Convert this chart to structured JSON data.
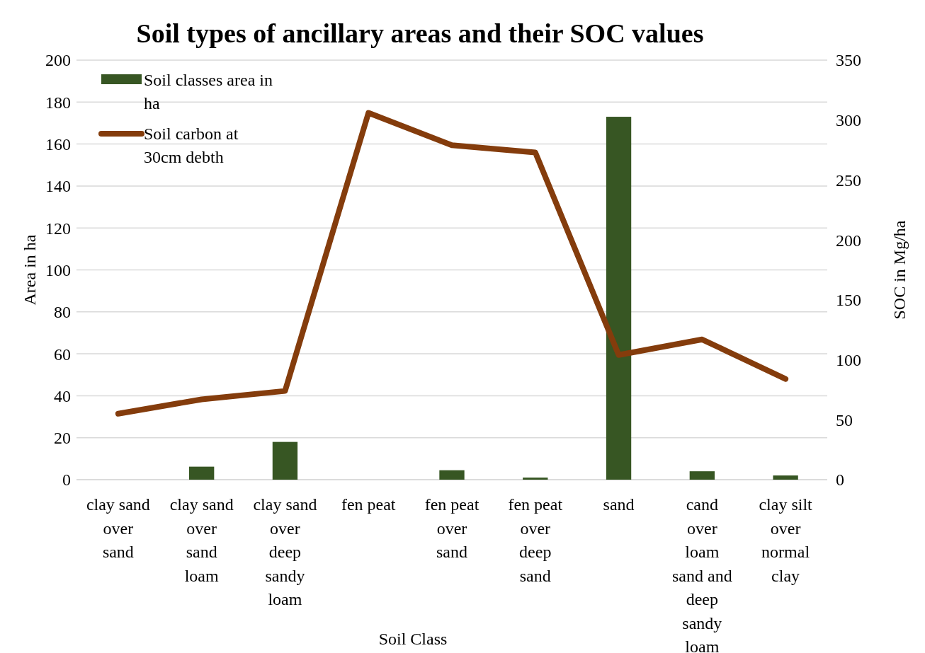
{
  "chart_data": {
    "type": "bar",
    "title": "Soil types of ancillary areas and their SOC values",
    "xlabel": "Soil Class",
    "ylabel": "Area in ha",
    "y2label": "SOC in Mg/ha",
    "categories": [
      "clay sand over sand",
      "clay sand over sand loam",
      "clay sand over deep sandy loam",
      "fen peat",
      "fen peat over sand",
      "fen peat over deep sand",
      "sand",
      "cand over loam sand and deep sandy loam",
      "clay silt over normal clay"
    ],
    "series": [
      {
        "name": "Soil classes area in ha",
        "color": "#375623",
        "values": [
          0,
          6.2,
          18,
          0,
          4.5,
          1,
          173,
          4,
          2
        ]
      },
      {
        "name": "Soil carbon at 30cm debth",
        "type": "line",
        "axis": "y2",
        "color": "#843c0c",
        "values": [
          55,
          67,
          74,
          306,
          279,
          273,
          104,
          117,
          84
        ]
      }
    ],
    "ylim": [
      0,
      200
    ],
    "yticks": [
      0,
      20,
      40,
      60,
      80,
      100,
      120,
      140,
      160,
      180,
      200
    ],
    "y2lim": [
      0,
      350
    ],
    "y2ticks": [
      0,
      50,
      100,
      150,
      200,
      250,
      300,
      350
    ],
    "grid": "y",
    "legend": "top left"
  }
}
